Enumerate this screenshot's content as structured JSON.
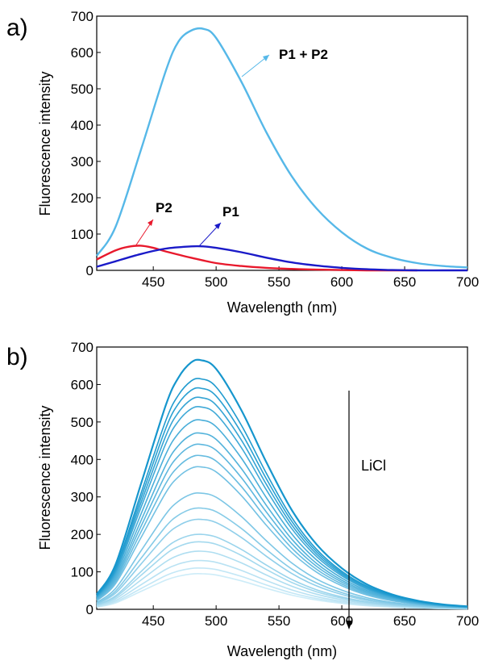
{
  "chart_data": [
    {
      "panel_label": "a)",
      "type": "line",
      "xlabel": "Wavelength (nm)",
      "ylabel": "Fluorescence intensity",
      "xlim": [
        405,
        700
      ],
      "ylim": [
        0,
        700
      ],
      "xticks": [
        450,
        500,
        550,
        600,
        650,
        700
      ],
      "yticks": [
        0,
        100,
        200,
        300,
        400,
        500,
        600,
        700
      ],
      "series": [
        {
          "name": "P1 + P2",
          "color": "#56b8e8",
          "x": [
            405,
            420,
            440,
            460,
            470,
            480,
            490,
            500,
            520,
            540,
            560,
            580,
            600,
            620,
            640,
            660,
            680,
            700
          ],
          "y": [
            40,
            120,
            330,
            550,
            630,
            660,
            665,
            640,
            520,
            380,
            260,
            170,
            105,
            60,
            35,
            20,
            12,
            8
          ]
        },
        {
          "name": "P2",
          "color": "#e8192c",
          "x": [
            405,
            420,
            430,
            440,
            450,
            460,
            480,
            500,
            520,
            540,
            560,
            580,
            600,
            620,
            640,
            660
          ],
          "y": [
            30,
            55,
            65,
            68,
            62,
            52,
            35,
            20,
            12,
            7,
            4,
            2,
            1,
            0,
            0,
            0
          ]
        },
        {
          "name": "P1",
          "color": "#1a1ac8",
          "x": [
            405,
            420,
            440,
            460,
            480,
            490,
            500,
            520,
            540,
            560,
            580,
            600,
            620,
            640,
            660,
            680,
            700
          ],
          "y": [
            10,
            25,
            45,
            60,
            66,
            66,
            62,
            50,
            35,
            22,
            13,
            7,
            3,
            1,
            0,
            0,
            0
          ]
        }
      ],
      "annotations": [
        {
          "text": "P1 + P2",
          "x": 535,
          "y": 600
        },
        {
          "text": "P2",
          "x": 442,
          "y": 160
        },
        {
          "text": "P1",
          "x": 510,
          "y": 150
        }
      ]
    },
    {
      "panel_label": "b)",
      "type": "line",
      "xlabel": "Wavelength (nm)",
      "ylabel": "Fluorescence intensity",
      "xlim": [
        405,
        700
      ],
      "ylim": [
        0,
        700
      ],
      "xticks": [
        450,
        500,
        550,
        600,
        650,
        700
      ],
      "yticks": [
        0,
        100,
        200,
        300,
        400,
        500,
        600,
        700
      ],
      "peak_x": 488,
      "peak_values": [
        665,
        615,
        590,
        565,
        540,
        505,
        470,
        440,
        410,
        380,
        310,
        270,
        240,
        200,
        180,
        155,
        130,
        110,
        95
      ],
      "annotation": {
        "text": "LiCl",
        "arrow_from_y": 640,
        "arrow_to_y": 195,
        "x": 607
      }
    }
  ]
}
